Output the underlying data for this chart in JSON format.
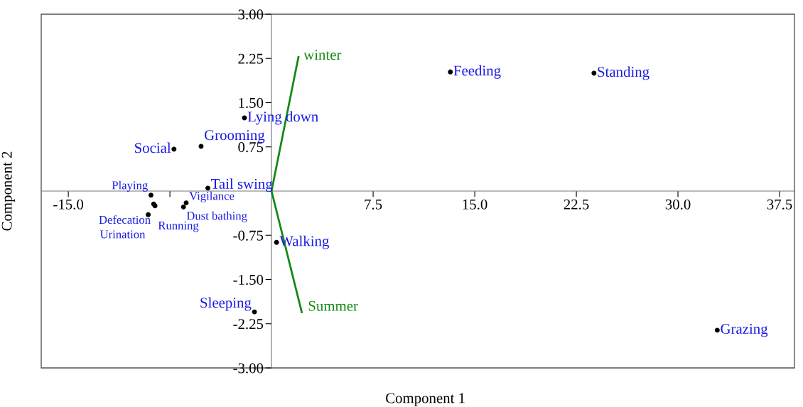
{
  "chart_data": {
    "type": "scatter",
    "xlabel": "Component 1",
    "ylabel": "Component 2",
    "xlim": [
      -17.0,
      38.6
    ],
    "ylim": [
      -3.0,
      3.0
    ],
    "xticks": [
      {
        "value": -15,
        "label": "-15.0"
      },
      {
        "value": -7.5,
        "label": null
      },
      {
        "value": 7.5,
        "label": "7.5"
      },
      {
        "value": 15,
        "label": "15.0"
      },
      {
        "value": 22.5,
        "label": "22.5"
      },
      {
        "value": 30,
        "label": "30.0"
      },
      {
        "value": 37.5,
        "label": "37.5"
      }
    ],
    "yticks": [
      {
        "value": -3,
        "label": "-3.00"
      },
      {
        "value": -2.25,
        "label": "-2.25"
      },
      {
        "value": -1.5,
        "label": "-1.50"
      },
      {
        "value": -0.75,
        "label": "-0.75"
      },
      {
        "value": 0.75,
        "label": "0.75"
      },
      {
        "value": 1.5,
        "label": "1.50"
      },
      {
        "value": 2.25,
        "label": "2.25"
      },
      {
        "value": 3,
        "label": "3.00"
      }
    ],
    "grid": false,
    "series": [
      {
        "marker": "circle",
        "color": "#000000",
        "x": [
          13.2,
          23.8,
          32.9,
          -2.0,
          -7.2,
          -5.2,
          -4.7,
          -8.9,
          -8.7,
          -8.6,
          -6.5,
          -6.3,
          -9.1,
          0.37,
          -1.26
        ],
        "values": [
          2.02,
          2.0,
          -2.36,
          1.24,
          0.71,
          0.76,
          0.05,
          -0.07,
          -0.22,
          -0.25,
          -0.27,
          -0.2,
          -0.4,
          -0.87,
          -2.05
        ]
      },
      {
        "type": "line",
        "marker": "none",
        "color": "#138a13",
        "x": [
          2.0,
          0,
          2.25
        ],
        "values": [
          2.29,
          0,
          -2.07
        ]
      }
    ],
    "annotations": [
      {
        "text": "winter",
        "x": 2.0,
        "y": 2.29
      },
      {
        "text": "Summer",
        "x": 2.25,
        "y": -2.07
      },
      {
        "text": "Feeding",
        "x": 13.2,
        "y": 2.02
      },
      {
        "text": "Standing",
        "x": 23.8,
        "y": 2.0
      },
      {
        "text": "Grazing",
        "x": 32.9,
        "y": -2.36
      },
      {
        "text": "Lying down",
        "x": -2.0,
        "y": 1.24
      },
      {
        "text": "Social",
        "x": -7.2,
        "y": 0.71
      },
      {
        "text": "Grooming",
        "x": -5.2,
        "y": 0.76
      },
      {
        "text": "Tail swing",
        "x": -4.7,
        "y": 0.05
      },
      {
        "text": "Playing",
        "x": -8.9,
        "y": -0.07
      },
      {
        "text": "Defecation",
        "x": -8.7,
        "y": -0.22
      },
      {
        "text": "Running",
        "x": -8.6,
        "y": -0.25
      },
      {
        "text": "Dust bathing",
        "x": -6.5,
        "y": -0.27
      },
      {
        "text": "Vigilance",
        "x": -6.3,
        "y": -0.2
      },
      {
        "text": "Urination",
        "x": -9.1,
        "y": -0.4
      },
      {
        "text": "Walking",
        "x": 0.37,
        "y": -0.87
      },
      {
        "text": "Sleeping",
        "x": -1.26,
        "y": -2.05
      }
    ]
  }
}
